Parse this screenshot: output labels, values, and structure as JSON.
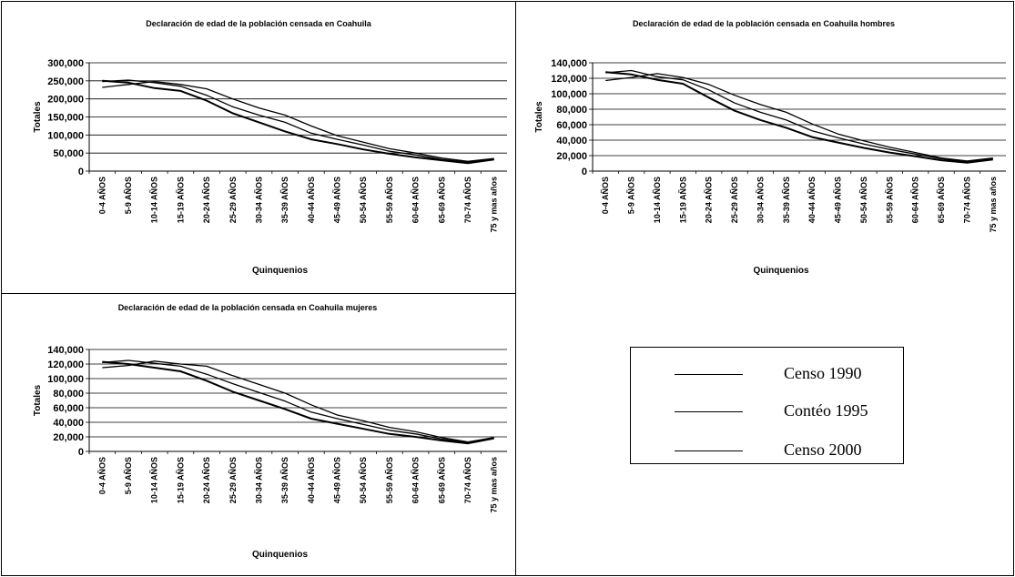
{
  "chart_data": [
    {
      "type": "line",
      "title": "Declaración de edad de la población censada en Coahuila",
      "xlabel": "Quinquenios",
      "ylabel": "Totales",
      "ylim": [
        0,
        300000
      ],
      "yticks": [
        "0",
        "50,000",
        "100,000",
        "150,000",
        "200,000",
        "250,000",
        "300,000"
      ],
      "ytick_values": [
        0,
        50000,
        100000,
        150000,
        200000,
        250000,
        300000
      ],
      "categories": [
        "0-4 AÑOS",
        "5-9 AÑOS",
        "10-14 AÑOS",
        "15-19 AÑOS",
        "20-24 AÑOS",
        "25-29 AÑOS",
        "30-34 AÑOS",
        "35-39 AÑOS",
        "40-44 AÑOS",
        "45-49 AÑOS",
        "50-54 AÑOS",
        "55-59 AÑOS",
        "60-64 AÑOS",
        "65-69 AÑOS",
        "70-74 AÑOS",
        "75 y mas años"
      ],
      "grid": true,
      "series": [
        {
          "name": "Censo 1990",
          "values": [
            250000,
            245000,
            230000,
            222000,
            195000,
            160000,
            135000,
            110000,
            88000,
            75000,
            60000,
            48000,
            38000,
            30000,
            22000,
            32000
          ]
        },
        {
          "name": "Contéo 1995",
          "values": [
            248000,
            252000,
            245000,
            235000,
            210000,
            178000,
            155000,
            135000,
            105000,
            88000,
            72000,
            55000,
            45000,
            32000,
            25000,
            33000
          ]
        },
        {
          "name": "Censo 2000",
          "values": [
            232000,
            240000,
            248000,
            240000,
            228000,
            200000,
            175000,
            155000,
            125000,
            98000,
            80000,
            62000,
            50000,
            36000,
            27000,
            35000
          ]
        }
      ]
    },
    {
      "type": "line",
      "title": "Declaración de edad de la población censada en Coahuila hombres",
      "xlabel": "Quinquenios",
      "ylabel": "Totales",
      "ylim": [
        0,
        140000
      ],
      "yticks": [
        "0",
        "20,000",
        "40,000",
        "60,000",
        "80,000",
        "100,000",
        "120,000",
        "140,000"
      ],
      "ytick_values": [
        0,
        20000,
        40000,
        60000,
        80000,
        100000,
        120000,
        140000
      ],
      "categories": [
        "0-4 AÑOS",
        "5-9 AÑOS",
        "10-14 AÑOS",
        "15-19 AÑOS",
        "20-24 AÑOS",
        "25-29 AÑOS",
        "30-34 AÑOS",
        "35-39 AÑOS",
        "40-44 AÑOS",
        "45-49 AÑOS",
        "50-54 AÑOS",
        "55-59 AÑOS",
        "60-64 AÑOS",
        "65-69 AÑOS",
        "70-74 AÑOS",
        "75 y mas años"
      ],
      "grid": true,
      "series": [
        {
          "name": "Censo 1990",
          "values": [
            128000,
            125000,
            118000,
            113000,
            95000,
            78000,
            66000,
            56000,
            44000,
            37000,
            30000,
            24000,
            19000,
            14000,
            11000,
            15000
          ]
        },
        {
          "name": "Contéo 1995",
          "values": [
            127000,
            130000,
            122000,
            118000,
            105000,
            88000,
            76000,
            66000,
            52000,
            43000,
            35000,
            28000,
            22000,
            16000,
            12000,
            16000
          ]
        },
        {
          "name": "Censo 2000",
          "values": [
            117000,
            121000,
            126000,
            121000,
            112000,
            98000,
            86000,
            76000,
            61000,
            48000,
            39000,
            31000,
            24000,
            17000,
            13000,
            17000
          ]
        }
      ]
    },
    {
      "type": "line",
      "title": "Declaración de edad de la población censada en Coahuila mujeres",
      "xlabel": "Quinquenios",
      "ylabel": "Totales",
      "ylim": [
        0,
        140000
      ],
      "yticks": [
        "0",
        "20,000",
        "40,000",
        "60,000",
        "80,000",
        "100,000",
        "120,000",
        "140,000"
      ],
      "ytick_values": [
        0,
        20000,
        40000,
        60000,
        80000,
        100000,
        120000,
        140000
      ],
      "categories": [
        "0-4 AÑOS",
        "5-9 AÑOS",
        "10-14 AÑOS",
        "15-19 AÑOS",
        "20-24 AÑOS",
        "25-29 AÑOS",
        "30-34 AÑOS",
        "35-39 AÑOS",
        "40-44 AÑOS",
        "45-49 AÑOS",
        "50-54 AÑOS",
        "55-59 AÑOS",
        "60-64 AÑOS",
        "65-69 AÑOS",
        "70-74 AÑOS",
        "75 y mas años"
      ],
      "grid": true,
      "series": [
        {
          "name": "Censo 1990",
          "values": [
            123000,
            120000,
            115000,
            110000,
            97000,
            82000,
            70000,
            58000,
            45000,
            38000,
            31000,
            24000,
            20000,
            15000,
            11000,
            18000
          ]
        },
        {
          "name": "Contéo 1995",
          "values": [
            122000,
            125000,
            121000,
            117000,
            106000,
            93000,
            81000,
            69000,
            54000,
            45000,
            37000,
            29000,
            24000,
            17000,
            12000,
            19000
          ]
        },
        {
          "name": "Censo 2000",
          "values": [
            115000,
            118000,
            124000,
            120000,
            117000,
            104000,
            92000,
            80000,
            64000,
            50000,
            42000,
            33000,
            27000,
            19000,
            13000,
            19000
          ]
        }
      ]
    }
  ],
  "legend": {
    "items": [
      "Censo 1990",
      "Contéo 1995",
      "Censo 2000"
    ]
  }
}
